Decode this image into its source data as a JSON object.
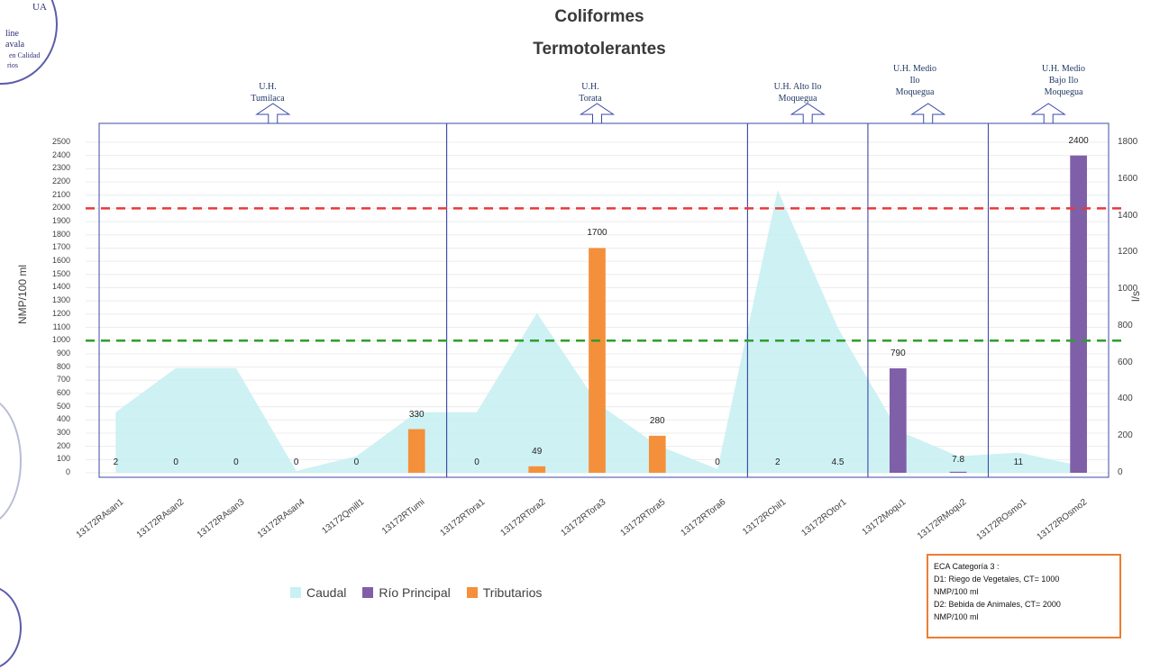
{
  "title_line1": "Coliformes",
  "title_line2": "Termotolerantes",
  "stamp": {
    "text_top": "UA",
    "text_lines": [
      "line",
      "avala",
      "en Calidad",
      "rios"
    ]
  },
  "basins": [
    {
      "label": [
        "U.H.",
        "Tumilaca"
      ]
    },
    {
      "label": [
        "U.H.",
        "Torata"
      ]
    },
    {
      "label": [
        "U.H. Alto Ilo",
        "Moquegua"
      ]
    },
    {
      "label": [
        "U.H. Medio",
        "Ilo",
        "Moquegua"
      ]
    },
    {
      "label": [
        "U.H. Medio",
        "Bajo Ilo",
        "Moquegua"
      ]
    }
  ],
  "chart_data": {
    "type": "bar",
    "title": "Coliformes Termotolerantes",
    "ylabel": "NMP/100 ml",
    "y2label": "l/s",
    "ylim": [
      0,
      2500
    ],
    "y2lim": [
      0,
      1800
    ],
    "yticks": [
      0,
      100,
      200,
      300,
      400,
      500,
      600,
      700,
      800,
      900,
      1000,
      1100,
      1200,
      1300,
      1400,
      1500,
      1600,
      1700,
      1800,
      1900,
      2000,
      2100,
      2200,
      2300,
      2400,
      2500
    ],
    "y2ticks": [
      0,
      200,
      400,
      600,
      800,
      1000,
      1200,
      1400,
      1600,
      1800
    ],
    "categories": [
      "13172RAsan1",
      "13172RAsan2",
      "13172RAsan3",
      "13172RAsan4",
      "13172Qmill1",
      "13172RTumi",
      "13172RTora1",
      "13172RTora2",
      "13172RTora3",
      "13172RTora5",
      "13172RTora6",
      "13172RChil1",
      "13172ROtor1",
      "13172Moqu1",
      "13172RMoqu2",
      "13172ROsmo1",
      "13172ROsmo2"
    ],
    "series": [
      {
        "name": "Caudal",
        "type": "area",
        "axis": "right",
        "color": "#c9f0f2",
        "values": [
          330,
          570,
          570,
          10,
          90,
          330,
          330,
          870,
          380,
          150,
          20,
          1540,
          790,
          230,
          90,
          110,
          40
        ]
      },
      {
        "name": "Río Principal",
        "type": "bar",
        "color": "#7f5fa8",
        "values": [
          null,
          null,
          null,
          null,
          null,
          null,
          null,
          null,
          null,
          null,
          null,
          null,
          null,
          790,
          7.8,
          null,
          2400
        ]
      },
      {
        "name": "Tributarios",
        "type": "bar",
        "color": "#f4903b",
        "values": [
          null,
          null,
          null,
          null,
          null,
          330,
          null,
          49,
          1700,
          280,
          null,
          null,
          null,
          null,
          null,
          null,
          null
        ]
      }
    ],
    "data_labels": [
      "2",
      "0",
      "0",
      "0",
      "0",
      "330",
      "0",
      "49",
      "1700",
      "280",
      "0",
      "2",
      "4.5",
      "790",
      "7.8",
      "11",
      "2400"
    ],
    "reference_lines": [
      {
        "value": 1000,
        "color": "#2e9e2e",
        "style": "dashed"
      },
      {
        "value": 2000,
        "color": "#e83a3a",
        "style": "dashed"
      }
    ],
    "grid": true,
    "legend": "bottom-center"
  },
  "eca_box": {
    "lines": [
      "ECA Categoría 3 :",
      "D1: Riego de Vegetales, CT= 1000",
      "NMP/100 ml",
      "D2: Bebida de Animales, CT= 2000",
      "NMP/100 ml"
    ]
  }
}
